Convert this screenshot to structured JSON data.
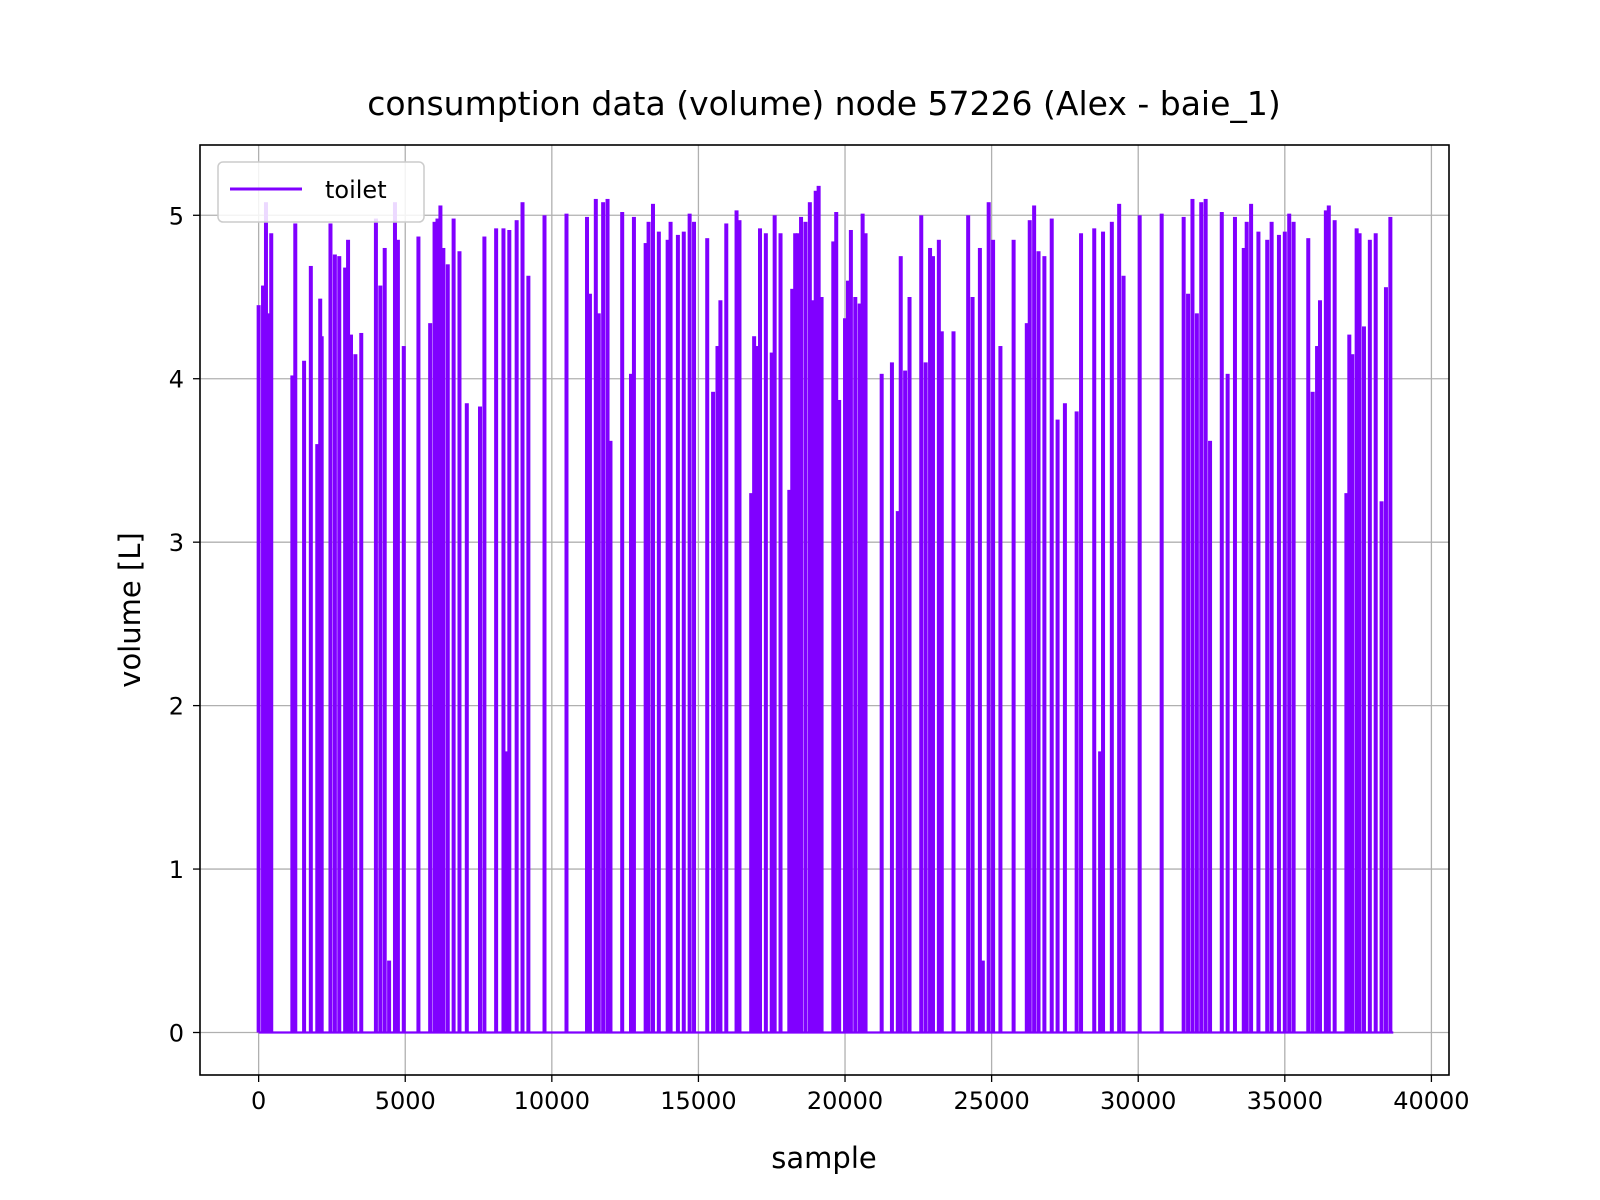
{
  "chart_data": {
    "type": "line",
    "title": "consumption data (volume) node 57226 (Alex - baie_1)",
    "xlabel": "sample",
    "ylabel": "volume [L]",
    "xlim": [
      -2000,
      40600
    ],
    "ylim": [
      -0.26,
      5.43
    ],
    "xticks": [
      0,
      5000,
      10000,
      15000,
      20000,
      25000,
      30000,
      35000,
      40000
    ],
    "xtick_labels": [
      "0",
      "5000",
      "10000",
      "15000",
      "20000",
      "25000",
      "30000",
      "35000",
      "40000"
    ],
    "yticks": [
      0,
      1,
      2,
      3,
      4,
      5
    ],
    "ytick_labels": [
      "0",
      "1",
      "2",
      "3",
      "4",
      "5"
    ],
    "grid": true,
    "legend": {
      "location": "upper left"
    },
    "series": [
      {
        "name": "toilet",
        "color": "#8000ff",
        "baseline": 0,
        "x_range": [
          0,
          38700
        ],
        "spikes": [
          {
            "x": 0,
            "y": 4.45
          },
          {
            "x": 150,
            "y": 4.57
          },
          {
            "x": 250,
            "y": 5.08
          },
          {
            "x": 320,
            "y": 4.4
          },
          {
            "x": 430,
            "y": 4.89
          },
          {
            "x": 1150,
            "y": 4.02
          },
          {
            "x": 1250,
            "y": 4.95
          },
          {
            "x": 1550,
            "y": 4.11
          },
          {
            "x": 1780,
            "y": 4.69
          },
          {
            "x": 2000,
            "y": 3.6
          },
          {
            "x": 2100,
            "y": 4.49
          },
          {
            "x": 2150,
            "y": 4.26
          },
          {
            "x": 2450,
            "y": 4.95
          },
          {
            "x": 2600,
            "y": 4.76
          },
          {
            "x": 2750,
            "y": 4.75
          },
          {
            "x": 2950,
            "y": 4.68
          },
          {
            "x": 3050,
            "y": 4.85
          },
          {
            "x": 3150,
            "y": 4.27
          },
          {
            "x": 3300,
            "y": 4.15
          },
          {
            "x": 3500,
            "y": 4.28
          },
          {
            "x": 4000,
            "y": 4.98
          },
          {
            "x": 4150,
            "y": 4.57
          },
          {
            "x": 4300,
            "y": 4.8
          },
          {
            "x": 4450,
            "y": 0.44
          },
          {
            "x": 4650,
            "y": 5.08
          },
          {
            "x": 4750,
            "y": 4.85
          },
          {
            "x": 4950,
            "y": 4.2
          },
          {
            "x": 5450,
            "y": 4.87
          },
          {
            "x": 5850,
            "y": 4.34
          },
          {
            "x": 6000,
            "y": 4.96
          },
          {
            "x": 6100,
            "y": 4.98
          },
          {
            "x": 6200,
            "y": 5.06
          },
          {
            "x": 6300,
            "y": 4.8
          },
          {
            "x": 6450,
            "y": 4.7
          },
          {
            "x": 6650,
            "y": 4.98
          },
          {
            "x": 6850,
            "y": 4.78
          },
          {
            "x": 7100,
            "y": 3.85
          },
          {
            "x": 7550,
            "y": 3.83
          },
          {
            "x": 7700,
            "y": 4.87
          },
          {
            "x": 8100,
            "y": 4.92
          },
          {
            "x": 8350,
            "y": 4.92
          },
          {
            "x": 8450,
            "y": 1.72
          },
          {
            "x": 8550,
            "y": 4.91
          },
          {
            "x": 8800,
            "y": 4.97
          },
          {
            "x": 9000,
            "y": 5.08
          },
          {
            "x": 9200,
            "y": 4.63
          },
          {
            "x": 9750,
            "y": 5.0
          },
          {
            "x": 10500,
            "y": 5.01
          },
          {
            "x": 11200,
            "y": 4.99
          },
          {
            "x": 11300,
            "y": 4.52
          },
          {
            "x": 11500,
            "y": 5.1
          },
          {
            "x": 11600,
            "y": 4.4
          },
          {
            "x": 11750,
            "y": 5.08
          },
          {
            "x": 11900,
            "y": 5.1
          },
          {
            "x": 12000,
            "y": 3.62
          },
          {
            "x": 12400,
            "y": 5.02
          },
          {
            "x": 12700,
            "y": 4.03
          },
          {
            "x": 12800,
            "y": 4.99
          },
          {
            "x": 13200,
            "y": 4.83
          },
          {
            "x": 13300,
            "y": 4.96
          },
          {
            "x": 13450,
            "y": 5.07
          },
          {
            "x": 13650,
            "y": 4.9
          },
          {
            "x": 13950,
            "y": 4.85
          },
          {
            "x": 14050,
            "y": 4.96
          },
          {
            "x": 14300,
            "y": 4.88
          },
          {
            "x": 14500,
            "y": 4.9
          },
          {
            "x": 14700,
            "y": 5.01
          },
          {
            "x": 14850,
            "y": 4.96
          },
          {
            "x": 15300,
            "y": 4.86
          },
          {
            "x": 15500,
            "y": 3.92
          },
          {
            "x": 15650,
            "y": 4.2
          },
          {
            "x": 15750,
            "y": 4.48
          },
          {
            "x": 15950,
            "y": 4.95
          },
          {
            "x": 16300,
            "y": 5.03
          },
          {
            "x": 16400,
            "y": 4.97
          },
          {
            "x": 16800,
            "y": 3.3
          },
          {
            "x": 16900,
            "y": 4.26
          },
          {
            "x": 17000,
            "y": 4.2
          },
          {
            "x": 17100,
            "y": 4.92
          },
          {
            "x": 17300,
            "y": 4.89
          },
          {
            "x": 17500,
            "y": 4.16
          },
          {
            "x": 17600,
            "y": 5.0
          },
          {
            "x": 17800,
            "y": 4.89
          },
          {
            "x": 18100,
            "y": 3.32
          },
          {
            "x": 18200,
            "y": 4.55
          },
          {
            "x": 18300,
            "y": 4.89
          },
          {
            "x": 18400,
            "y": 4.89
          },
          {
            "x": 18500,
            "y": 4.99
          },
          {
            "x": 18650,
            "y": 4.96
          },
          {
            "x": 18800,
            "y": 5.08
          },
          {
            "x": 18900,
            "y": 4.48
          },
          {
            "x": 19000,
            "y": 5.15
          },
          {
            "x": 19100,
            "y": 5.18
          },
          {
            "x": 19200,
            "y": 4.5
          },
          {
            "x": 19600,
            "y": 4.84
          },
          {
            "x": 19700,
            "y": 5.02
          },
          {
            "x": 19800,
            "y": 3.87
          },
          {
            "x": 20000,
            "y": 4.37
          },
          {
            "x": 20100,
            "y": 4.6
          },
          {
            "x": 20200,
            "y": 4.91
          },
          {
            "x": 20350,
            "y": 4.5
          },
          {
            "x": 20500,
            "y": 4.46
          },
          {
            "x": 20600,
            "y": 5.01
          },
          {
            "x": 20700,
            "y": 4.89
          },
          {
            "x": 21250,
            "y": 4.03
          },
          {
            "x": 21600,
            "y": 4.1
          },
          {
            "x": 21800,
            "y": 3.19
          },
          {
            "x": 21900,
            "y": 4.75
          },
          {
            "x": 22050,
            "y": 4.05
          },
          {
            "x": 22200,
            "y": 4.5
          },
          {
            "x": 22600,
            "y": 5.0
          },
          {
            "x": 22750,
            "y": 4.1
          },
          {
            "x": 22900,
            "y": 4.8
          },
          {
            "x": 23000,
            "y": 4.75
          },
          {
            "x": 23200,
            "y": 4.85
          },
          {
            "x": 23300,
            "y": 4.29
          },
          {
            "x": 23700,
            "y": 4.29
          },
          {
            "x": 24200,
            "y": 5.0
          },
          {
            "x": 24350,
            "y": 4.5
          },
          {
            "x": 24600,
            "y": 4.8
          },
          {
            "x": 24700,
            "y": 0.44
          },
          {
            "x": 24900,
            "y": 5.08
          },
          {
            "x": 25050,
            "y": 4.85
          },
          {
            "x": 25300,
            "y": 4.2
          },
          {
            "x": 25750,
            "y": 4.85
          },
          {
            "x": 26200,
            "y": 4.34
          },
          {
            "x": 26300,
            "y": 4.97
          },
          {
            "x": 26450,
            "y": 5.06
          },
          {
            "x": 26600,
            "y": 4.78
          },
          {
            "x": 26800,
            "y": 4.75
          },
          {
            "x": 27050,
            "y": 4.98
          },
          {
            "x": 27250,
            "y": 3.75
          },
          {
            "x": 27500,
            "y": 3.85
          },
          {
            "x": 27900,
            "y": 3.8
          },
          {
            "x": 28050,
            "y": 4.89
          },
          {
            "x": 28500,
            "y": 4.92
          },
          {
            "x": 28700,
            "y": 1.72
          },
          {
            "x": 28800,
            "y": 4.9
          },
          {
            "x": 29100,
            "y": 4.96
          },
          {
            "x": 29350,
            "y": 5.07
          },
          {
            "x": 29500,
            "y": 4.63
          },
          {
            "x": 30050,
            "y": 5.0
          },
          {
            "x": 30800,
            "y": 5.01
          },
          {
            "x": 31550,
            "y": 4.99
          },
          {
            "x": 31700,
            "y": 4.52
          },
          {
            "x": 31850,
            "y": 5.1
          },
          {
            "x": 32000,
            "y": 4.4
          },
          {
            "x": 32150,
            "y": 5.08
          },
          {
            "x": 32300,
            "y": 5.1
          },
          {
            "x": 32450,
            "y": 3.62
          },
          {
            "x": 32850,
            "y": 5.02
          },
          {
            "x": 33050,
            "y": 4.03
          },
          {
            "x": 33300,
            "y": 4.99
          },
          {
            "x": 33600,
            "y": 4.8
          },
          {
            "x": 33700,
            "y": 4.96
          },
          {
            "x": 33850,
            "y": 5.07
          },
          {
            "x": 34100,
            "y": 4.9
          },
          {
            "x": 34400,
            "y": 4.85
          },
          {
            "x": 34550,
            "y": 4.96
          },
          {
            "x": 34800,
            "y": 4.88
          },
          {
            "x": 35000,
            "y": 4.9
          },
          {
            "x": 35150,
            "y": 5.01
          },
          {
            "x": 35300,
            "y": 4.96
          },
          {
            "x": 35800,
            "y": 4.86
          },
          {
            "x": 35950,
            "y": 3.92
          },
          {
            "x": 36100,
            "y": 4.2
          },
          {
            "x": 36200,
            "y": 4.48
          },
          {
            "x": 36400,
            "y": 5.03
          },
          {
            "x": 36500,
            "y": 5.06
          },
          {
            "x": 36700,
            "y": 4.97
          },
          {
            "x": 37100,
            "y": 3.3
          },
          {
            "x": 37200,
            "y": 4.27
          },
          {
            "x": 37300,
            "y": 4.15
          },
          {
            "x": 37450,
            "y": 4.92
          },
          {
            "x": 37550,
            "y": 4.89
          },
          {
            "x": 37700,
            "y": 4.32
          },
          {
            "x": 37900,
            "y": 4.85
          },
          {
            "x": 38100,
            "y": 4.89
          },
          {
            "x": 38300,
            "y": 3.25
          },
          {
            "x": 38450,
            "y": 4.56
          },
          {
            "x": 38600,
            "y": 4.99
          }
        ]
      }
    ]
  }
}
